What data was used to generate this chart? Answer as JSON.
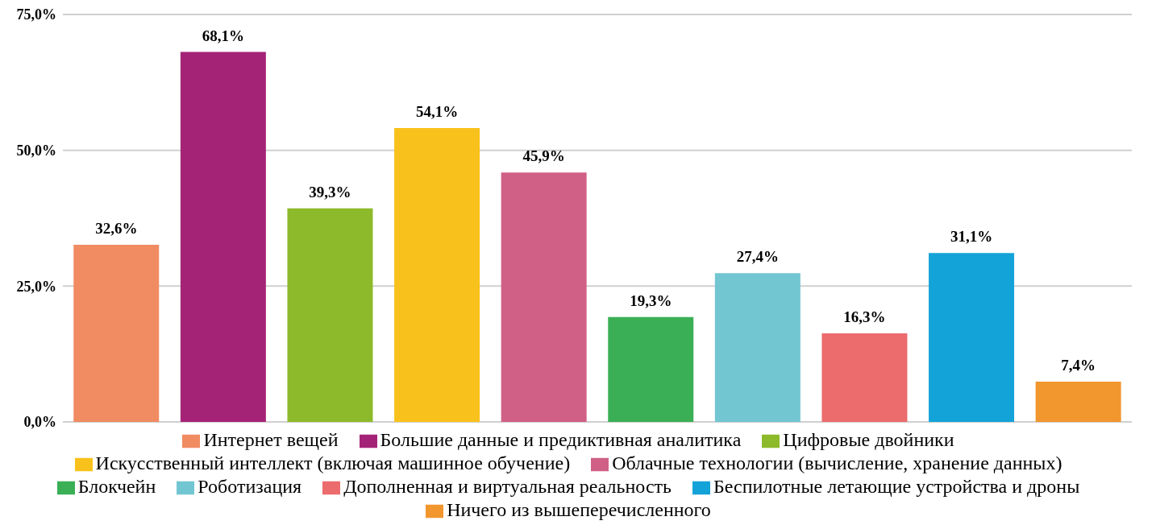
{
  "chart_data": {
    "type": "bar",
    "categories": [
      null,
      null,
      null,
      null,
      null,
      null,
      null,
      null,
      null,
      null
    ],
    "stacked": true,
    "series": [
      {
        "name": "Интернет вещей",
        "color": "#f08b62",
        "values": [
          32.6,
          null,
          null,
          null,
          null,
          null,
          null,
          null,
          null,
          null
        ],
        "value_labels": [
          "32,6%",
          null,
          null,
          null,
          null,
          null,
          null,
          null,
          null,
          null
        ]
      },
      {
        "name": "Большие данные и предиктивная аналитика",
        "color": "#a52377",
        "values": [
          null,
          68.1,
          null,
          null,
          null,
          null,
          null,
          null,
          null,
          null
        ],
        "value_labels": [
          null,
          "68,1%",
          null,
          null,
          null,
          null,
          null,
          null,
          null,
          null
        ]
      },
      {
        "name": "Цифровые двойники",
        "color": "#8dba2a",
        "values": [
          null,
          null,
          39.3,
          null,
          null,
          null,
          null,
          null,
          null,
          null
        ],
        "value_labels": [
          null,
          null,
          "39,3%",
          null,
          null,
          null,
          null,
          null,
          null,
          null
        ]
      },
      {
        "name": "Искусственный интеллект (включая машинное обучение)",
        "color": "#f9c11b",
        "values": [
          null,
          null,
          null,
          54.1,
          null,
          null,
          null,
          null,
          null,
          null
        ],
        "value_labels": [
          null,
          null,
          null,
          "54,1%",
          null,
          null,
          null,
          null,
          null,
          null
        ]
      },
      {
        "name": "Облачные технологии (вычисление, хранение данных)",
        "color": "#d06085",
        "values": [
          null,
          null,
          null,
          null,
          45.9,
          null,
          null,
          null,
          null,
          null
        ],
        "value_labels": [
          null,
          null,
          null,
          null,
          "45,9%",
          null,
          null,
          null,
          null,
          null
        ]
      },
      {
        "name": "Блокчейн",
        "color": "#3aaf55",
        "values": [
          null,
          null,
          null,
          null,
          null,
          19.3,
          null,
          null,
          null,
          null
        ],
        "value_labels": [
          null,
          null,
          null,
          null,
          null,
          "19,3%",
          null,
          null,
          null,
          null
        ]
      },
      {
        "name": "Роботизация",
        "color": "#72c6d1",
        "values": [
          null,
          null,
          null,
          null,
          null,
          null,
          27.4,
          null,
          null,
          null
        ],
        "value_labels": [
          null,
          null,
          null,
          null,
          null,
          null,
          "27,4%",
          null,
          null,
          null
        ]
      },
      {
        "name": "Дополненная и виртуальная реальность",
        "color": "#ec6b6c",
        "values": [
          null,
          null,
          null,
          null,
          null,
          null,
          null,
          16.3,
          null,
          null
        ],
        "value_labels": [
          null,
          null,
          null,
          null,
          null,
          null,
          null,
          "16,3%",
          null,
          null
        ]
      },
      {
        "name": "Беспилотные летающие устройства и дроны",
        "color": "#13a3d8",
        "values": [
          null,
          null,
          null,
          null,
          null,
          null,
          null,
          null,
          31.1,
          null
        ],
        "value_labels": [
          null,
          null,
          null,
          null,
          null,
          null,
          null,
          null,
          "31,1%",
          null
        ]
      },
      {
        "name": "Ничего из вышеперечисленного",
        "color": "#f2962e",
        "values": [
          null,
          null,
          null,
          null,
          null,
          null,
          null,
          null,
          null,
          7.4
        ],
        "value_labels": [
          null,
          null,
          null,
          null,
          null,
          null,
          null,
          null,
          null,
          "7,4%"
        ]
      }
    ],
    "ylim": [
      0,
      75
    ],
    "yticks": [
      {
        "value": 0,
        "label": "0,0%"
      },
      {
        "value": 25,
        "label": "25,0%"
      },
      {
        "value": 50,
        "label": "50,0%"
      },
      {
        "value": 75,
        "label": "75,0%"
      }
    ],
    "grid": "y",
    "legend": "bottom",
    "tick_labels": "y"
  }
}
